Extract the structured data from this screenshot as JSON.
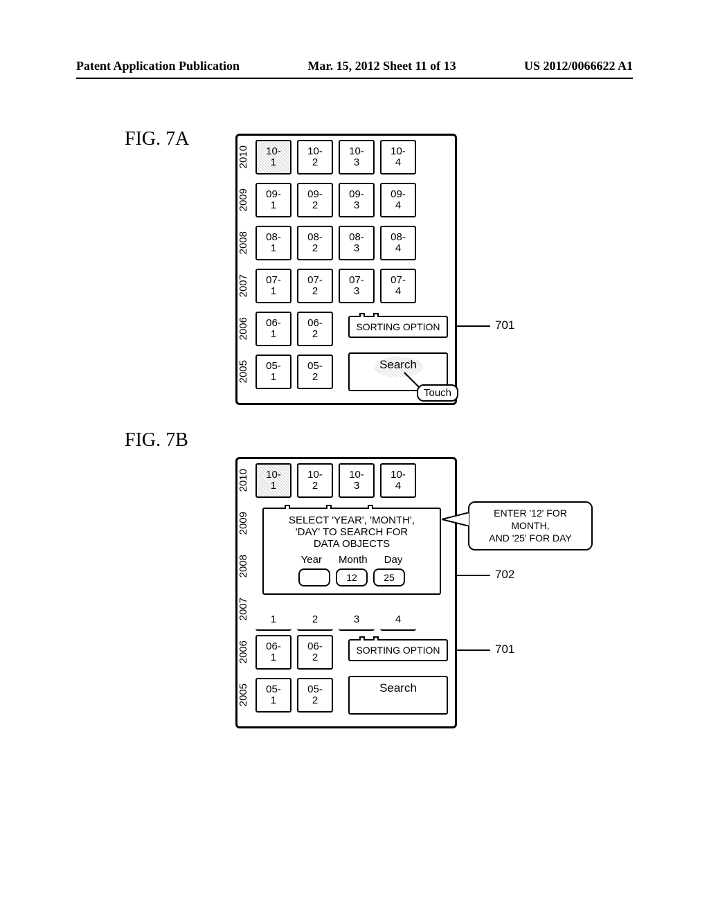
{
  "header": {
    "left": "Patent Application Publication",
    "center": "Mar. 15, 2012  Sheet 11 of 13",
    "right": "US 2012/0066622 A1"
  },
  "fig7a": {
    "label": "FIG.  7A",
    "sorting_option": "SORTING OPTION",
    "search": "Search",
    "touch": "Touch",
    "callout_701": "701",
    "rows": [
      {
        "year": "2010",
        "cells": [
          "10-\n1",
          "10-\n2",
          "10-\n3",
          "10-\n4"
        ],
        "selected": 0
      },
      {
        "year": "2009",
        "cells": [
          "09-\n1",
          "09-\n2",
          "09-\n3",
          "09-\n4"
        ]
      },
      {
        "year": "2008",
        "cells": [
          "08-\n1",
          "08-\n2",
          "08-\n3",
          "08-\n4"
        ]
      },
      {
        "year": "2007",
        "cells": [
          "07-\n1",
          "07-\n2",
          "07-\n3",
          "07-\n4"
        ]
      },
      {
        "year": "2006",
        "cells": [
          "06-\n1",
          "06-\n2"
        ]
      },
      {
        "year": "2005",
        "cells": [
          "05-\n1",
          "05-\n2"
        ]
      }
    ]
  },
  "fig7b": {
    "label": "FIG.  7B",
    "sorting_option": "SORTING OPTION",
    "search": "Search",
    "callout_701": "701",
    "callout_702": "702",
    "note": "ENTER '12' FOR MONTH,\nAND '25' FOR DAY",
    "dialog_line1": "SELECT 'YEAR', 'MONTH',",
    "dialog_line2": "'DAY' TO SEARCH FOR",
    "dialog_line3": "DATA OBJECTS",
    "dialog_labels": {
      "year": "Year",
      "month": "Month",
      "day": "Day"
    },
    "dialog_values": {
      "year": "",
      "month": "12",
      "day": "25"
    },
    "rows": [
      {
        "year": "2010",
        "cells": [
          "10-\n1",
          "10-\n2",
          "10-\n3",
          "10-\n4"
        ],
        "selected": 0
      },
      {
        "year": "2009"
      },
      {
        "year": "2008"
      },
      {
        "year": "2007",
        "bottom": [
          "1",
          "2",
          "3",
          "4"
        ]
      },
      {
        "year": "2006",
        "cells": [
          "06-\n1",
          "06-\n2"
        ]
      },
      {
        "year": "2005",
        "cells": [
          "05-\n1",
          "05-\n2"
        ]
      }
    ]
  }
}
